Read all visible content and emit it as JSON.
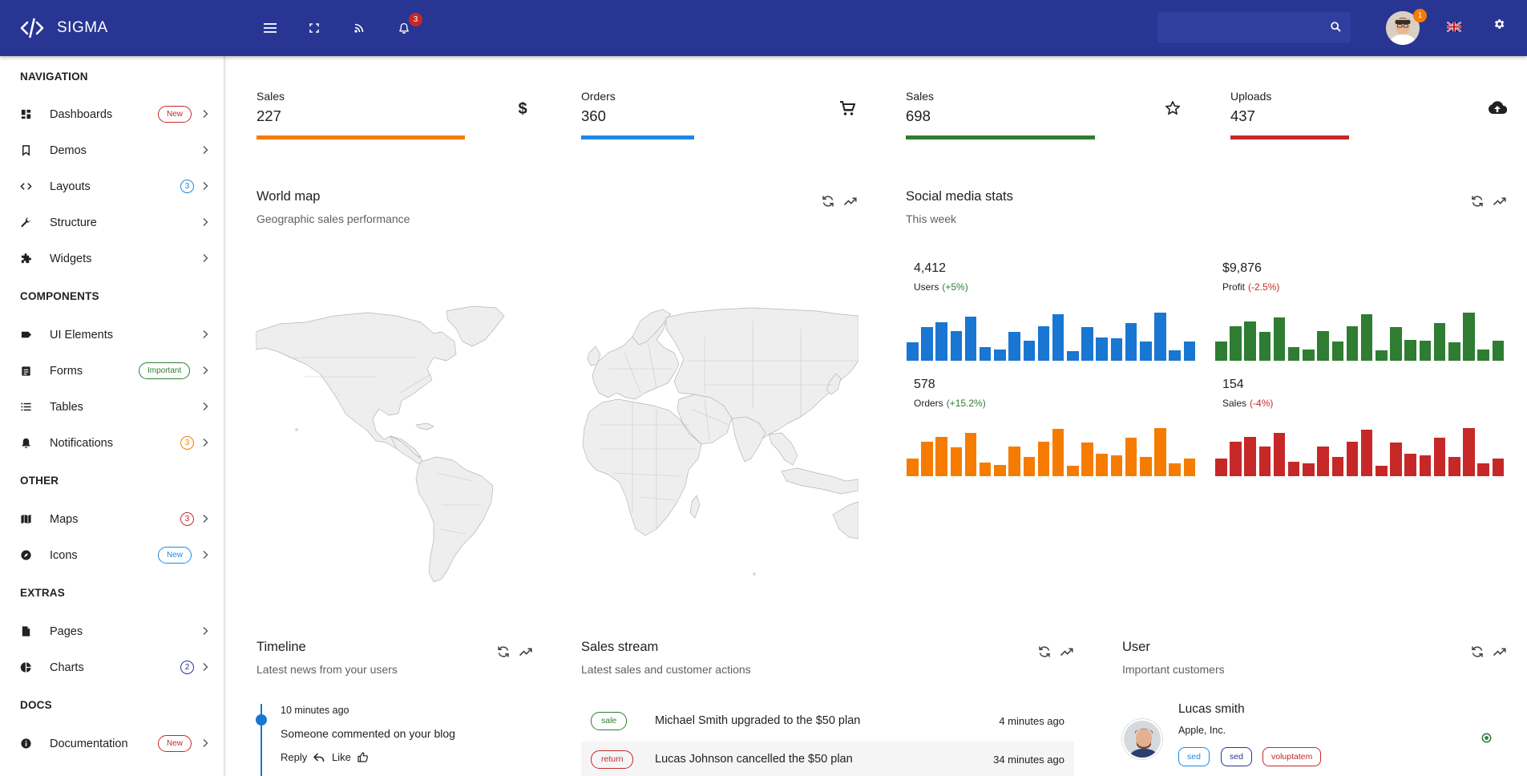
{
  "app": {
    "name": "SIGMA"
  },
  "topbar": {
    "notification_count": "3",
    "user_badge_count": "1",
    "search_placeholder": ""
  },
  "sidebar": {
    "sections": [
      {
        "title": "NAVIGATION"
      },
      {
        "title": "COMPONENTS"
      },
      {
        "title": "OTHER"
      },
      {
        "title": "EXTRAS"
      },
      {
        "title": "DOCS"
      }
    ],
    "items": [
      {
        "label": "Dashboards",
        "icon": "dashboard-icon",
        "badge": "New"
      },
      {
        "label": "Demos",
        "icon": "bookmark-icon"
      },
      {
        "label": "Layouts",
        "icon": "code-icon",
        "badge": "3"
      },
      {
        "label": "Structure",
        "icon": "wrench-icon"
      },
      {
        "label": "Widgets",
        "icon": "puzzle-icon"
      },
      {
        "label": "UI Elements",
        "icon": "label-icon"
      },
      {
        "label": "Forms",
        "icon": "assignment-icon",
        "badge": "Important"
      },
      {
        "label": "Tables",
        "icon": "list-icon"
      },
      {
        "label": "Notifications",
        "icon": "bell-icon",
        "badge": "3"
      },
      {
        "label": "Maps",
        "icon": "map-icon",
        "badge": "3"
      },
      {
        "label": "Icons",
        "icon": "compass-icon",
        "badge": "New"
      },
      {
        "label": "Pages",
        "icon": "file-icon"
      },
      {
        "label": "Charts",
        "icon": "pie-chart-icon",
        "badge": "2"
      },
      {
        "label": "Documentation",
        "icon": "info-icon",
        "badge": "New"
      }
    ]
  },
  "stats": [
    {
      "label": "Sales",
      "value": "227",
      "icon": "dollar-icon",
      "color": "#f57c00",
      "progress": 0.7
    },
    {
      "label": "Orders",
      "value": "360",
      "icon": "cart-icon",
      "color": "#1e88e5",
      "progress": 0.38
    },
    {
      "label": "Sales",
      "value": "698",
      "icon": "star-icon",
      "color": "#2e7d32",
      "progress": 0.64
    },
    {
      "label": "Uploads",
      "value": "437",
      "icon": "cloud-upload-icon",
      "color": "#c62828",
      "progress": 0.4
    }
  ],
  "world_map": {
    "title": "World map",
    "subtitle": "Geographic sales performance"
  },
  "social": {
    "title": "Social media stats",
    "subtitle": "This week",
    "blocks": [
      {
        "value": "4,412",
        "label": "Users",
        "change": "(+5%)",
        "change_color": "#2e7d32",
        "color": "#1976d2",
        "bars": [
          0.38,
          0.7,
          0.8,
          0.62,
          0.92,
          0.28,
          0.24,
          0.6,
          0.42,
          0.72,
          0.96,
          0.2,
          0.7,
          0.48,
          0.46,
          0.78,
          0.4,
          1.0,
          0.22,
          0.4
        ]
      },
      {
        "value": "$9,876",
        "label": "Profit",
        "change": "(-2.5%)",
        "change_color": "#c62828",
        "color": "#2e7d32",
        "bars": [
          0.4,
          0.72,
          0.82,
          0.6,
          0.9,
          0.28,
          0.24,
          0.62,
          0.4,
          0.72,
          0.96,
          0.22,
          0.7,
          0.44,
          0.42,
          0.78,
          0.38,
          1.0,
          0.24,
          0.42
        ]
      },
      {
        "value": "578",
        "label": "Orders",
        "change": "(+15.2%)",
        "change_color": "#2e7d32",
        "color": "#f57c00",
        "bars": [
          0.36,
          0.72,
          0.82,
          0.6,
          0.9,
          0.28,
          0.24,
          0.62,
          0.4,
          0.72,
          0.98,
          0.22,
          0.7,
          0.46,
          0.44,
          0.8,
          0.4,
          1.0,
          0.26,
          0.36
        ]
      },
      {
        "value": "154",
        "label": "Sales",
        "change": "(-4%)",
        "change_color": "#c62828",
        "color": "#c62828",
        "bars": [
          0.36,
          0.72,
          0.82,
          0.62,
          0.9,
          0.3,
          0.26,
          0.62,
          0.4,
          0.72,
          0.96,
          0.22,
          0.7,
          0.46,
          0.44,
          0.8,
          0.4,
          1.0,
          0.26,
          0.36
        ]
      }
    ]
  },
  "timeline": {
    "title": "Timeline",
    "subtitle": "Latest news from your users",
    "entry": {
      "time": "10 minutes ago",
      "text": "Someone commented on your blog",
      "reply": "Reply",
      "like": "Like"
    }
  },
  "sales_stream": {
    "title": "Sales stream",
    "subtitle": "Latest sales and customer actions",
    "rows": [
      {
        "tag": "sale",
        "tag_color": "#2e7d32",
        "text": "Michael Smith upgraded to the $50 plan",
        "time": "4 minutes ago"
      },
      {
        "tag": "return",
        "tag_color": "#c62828",
        "text": "Lucas Johnson cancelled the $50 plan",
        "time": "34 minutes ago"
      }
    ]
  },
  "user_card": {
    "title": "User",
    "subtitle": "Important customers",
    "name": "Lucas smith",
    "company": "Apple, Inc.",
    "tags": [
      {
        "label": "sed",
        "color": "#1e88e5"
      },
      {
        "label": "sed",
        "color": "#283593"
      },
      {
        "label": "voluptatem",
        "color": "#c62828"
      }
    ],
    "status_color": "#2e7d32"
  }
}
